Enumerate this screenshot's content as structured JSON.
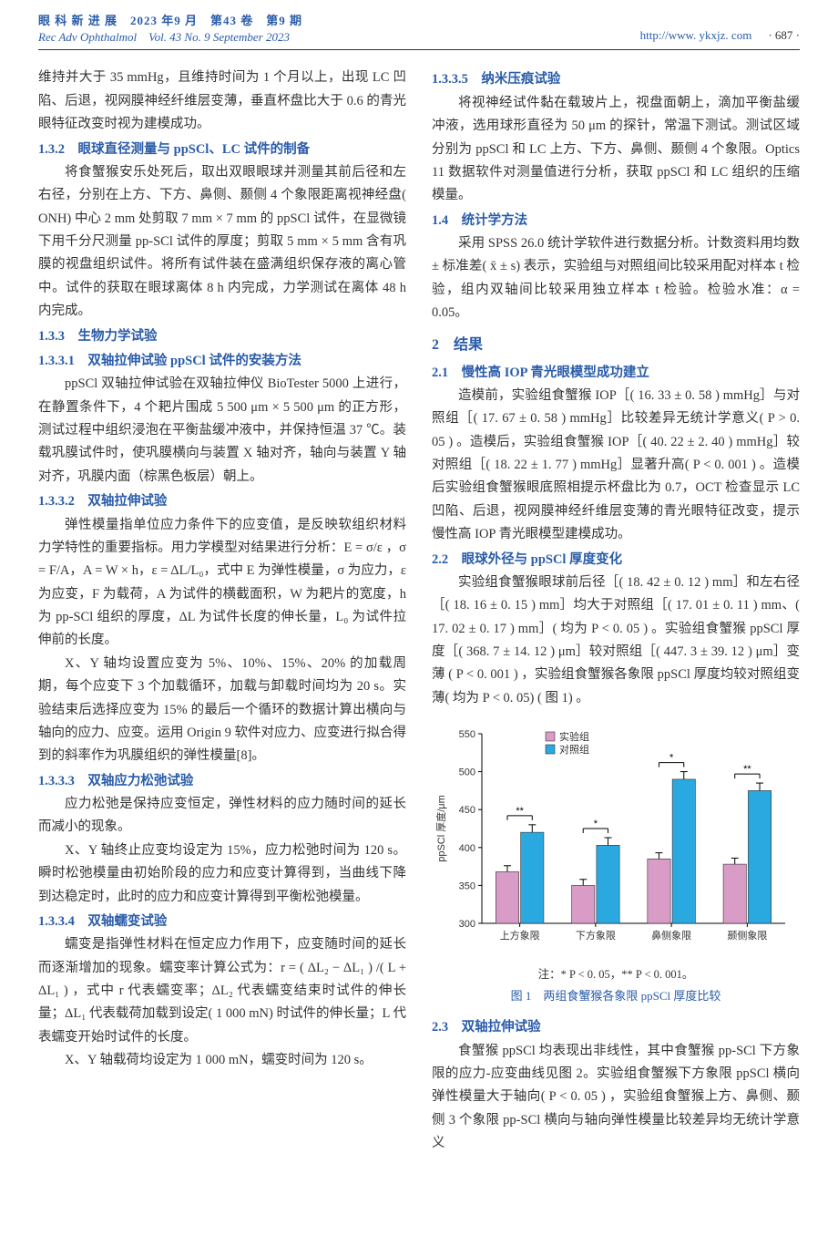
{
  "header": {
    "journal_cn": "眼 科 新 进 展　2023 年9 月　第43 卷　第9 期",
    "journal_en": "Rec Adv Ophthalmol　Vol. 43 No. 9 September 2023",
    "url": "http://www. ykxjz. com",
    "page": "· 687 ·"
  },
  "left": {
    "p1": "维持并大于 35 mmHg，且维持时间为 1 个月以上，出现 LC 凹陷、后退，视网膜神经纤维层变薄，垂直杯盘比大于 0.6 的青光眼特征改变时视为建模成功。",
    "h132": "1.3.2　眼球直径测量与 ppSCl、LC 试件的制备",
    "p132": "将食蟹猴安乐处死后，取出双眼眼球并测量其前后径和左右径，分别在上方、下方、鼻侧、颞侧 4 个象限距离视神经盘( ONH) 中心 2 mm 处剪取 7 mm × 7 mm 的 ppSCl 试件，在显微镜下用千分尺测量 pp-SCl 试件的厚度；剪取 5 mm × 5 mm 含有巩膜的视盘组织试件。将所有试件装在盛满组织保存液的离心管中。试件的获取在眼球离体 8 h 内完成，力学测试在离体 48 h 内完成。",
    "h133": "1.3.3　生物力学试验",
    "h1331": "1.3.3.1　双轴拉伸试验 ppSCl 试件的安装方法",
    "p1331": "ppSCl 双轴拉伸试验在双轴拉伸仪 BioTester 5000 上进行，在静置条件下，4 个耙片围成 5 500 μm × 5 500 μm 的正方形，测试过程中组织浸泡在平衡盐缓冲液中，并保持恒温 37 ℃。装载巩膜试件时，使巩膜横向与装置 X 轴对齐，轴向与装置 Y 轴对齐，巩膜内面（棕黑色板层）朝上。",
    "h1332": "1.3.3.2　双轴拉伸试验",
    "p1332a": "弹性模量指单位应力条件下的应变值，是反映软组织材料力学特性的重要指标。用力学模型对结果进行分析：E = σ/ε ，σ = F/A，A = W × h，ε = ΔL/L₀，式中 E 为弹性模量，σ 为应力，ε 为应变，F 为载荷，A 为试件的横截面积，W 为耙片的宽度，h 为 pp-SCl 组织的厚度，ΔL 为试件长度的伸长量，L₀ 为试件拉伸前的长度。",
    "p1332b": "X、Y 轴均设置应变为 5%、10%、15%、20% 的加载周期，每个应变下 3 个加载循环，加载与卸载时间均为 20 s。实验结束后选择应变为 15% 的最后一个循环的数据计算出横向与轴向的应力、应变。运用 Origin 9 软件对应力、应变进行拟合得到的斜率作为巩膜组织的弹性模量[8]。",
    "h1333": "1.3.3.3　双轴应力松弛试验",
    "p1333a": "应力松弛是保持应变恒定，弹性材料的应力随时间的延长而减小的现象。",
    "p1333b": "X、Y 轴终止应变均设定为 15%，应力松弛时间为 120 s。瞬时松弛模量由初始阶段的应力和应变计算得到，当曲线下降到达稳定时，此时的应力和应变计算得到平衡松弛模量。",
    "h1334": "1.3.3.4　双轴蠕变试验",
    "p1334a": "蠕变是指弹性材料在恒定应力作用下，应变随时间的延长而逐渐增加的现象。蠕变率计算公式为：r = ( ΔL₂ − ΔL₁ ) /( L + ΔL₁ ) ，式中 r 代表蠕变率；ΔL₂ 代表蠕变结束时试件的伸长量；ΔL₁ 代表载荷加载到设定( 1 000 mN) 时试件的伸长量；L 代表蠕变开始时试件的长度。",
    "p1334b": "X、Y 轴载荷均设定为 1 000 mN，蠕变时间为 120 s。"
  },
  "right": {
    "h1335": "1.3.3.5　纳米压痕试验",
    "p1335": "将视神经试件黏在载玻片上，视盘面朝上，滴加平衡盐缓冲液，选用球形直径为 50 μm 的探针，常温下测试。测试区域分别为 ppSCl 和 LC 上方、下方、鼻侧、颞侧 4 个象限。Optics 11 数据软件对测量值进行分析，获取 ppSCl 和 LC 组织的压缩模量。",
    "h14": "1.4　统计学方法",
    "p14": "采用 SPSS 26.0 统计学软件进行数据分析。计数资料用均数 ± 标准差( x̄ ± s) 表示，实验组与对照组间比较采用配对样本 t 检验，组内双轴间比较采用独立样本 t 检验。检验水准：α = 0.05。",
    "h2": "2　结果",
    "h21": "2.1　慢性高 IOP 青光眼模型成功建立",
    "p21": "造模前，实验组食蟹猴 IOP［( 16. 33 ± 0. 58 ) mmHg］与对照组［( 17. 67 ± 0. 58 ) mmHg］比较差异无统计学意义( P > 0. 05 ) 。造模后，实验组食蟹猴 IOP［( 40. 22 ± 2. 40 ) mmHg］较对照组［( 18. 22 ± 1. 77 ) mmHg］显著升高( P < 0. 001 ) 。造模后实验组食蟹猴眼底照相提示杯盘比为 0.7，OCT 检查显示 LC 凹陷、后退，视网膜神经纤维层变薄的青光眼特征改变，提示慢性高 IOP 青光眼模型建模成功。",
    "h22": "2.2　眼球外径与 ppSCl 厚度变化",
    "p22": "实验组食蟹猴眼球前后径［( 18. 42 ± 0. 12 ) mm］和左右径［( 18. 16 ± 0. 15 ) mm］均大于对照组［( 17. 01 ± 0. 11 ) mm、( 17. 02 ± 0. 17 ) mm］( 均为 P < 0. 05 ) 。实验组食蟹猴 ppSCl 厚度［( 368. 7 ± 14. 12 ) μm］较对照组［( 447. 3 ± 39. 12 ) μm］变薄 ( P < 0. 001 ) ，实验组食蟹猴各象限 ppSCl 厚度均较对照组变薄( 均为 P < 0. 05) ( 图 1) 。",
    "h23": "2.3　双轴拉伸试验",
    "p23": "食蟹猴 ppSCl 均表现出非线性，其中食蟹猴 pp-SCl 下方象限的应力-应变曲线见图 2。实验组食蟹猴下方象限 ppSCl 横向弹性模量大于轴向( P < 0. 05 ) ，实验组食蟹猴上方、鼻侧、颞侧 3 个象限 pp-SCl 横向与轴向弹性模量比较差异均无统计学意义"
  },
  "chart": {
    "type": "bar",
    "ylabel": "ppSCl 厚度/μm",
    "ylim": [
      300,
      550
    ],
    "ytick_step": 50,
    "yticks": [
      300,
      350,
      400,
      450,
      500,
      550
    ],
    "categories": [
      "上方象限",
      "下方象限",
      "鼻侧象限",
      "颞侧象限"
    ],
    "series": [
      {
        "name": "实验组",
        "color": "#d89cc7",
        "values": [
          368,
          350,
          385,
          378
        ],
        "err": [
          8,
          8,
          8,
          8
        ]
      },
      {
        "name": "对照组",
        "color": "#2aa9e0",
        "values": [
          420,
          403,
          490,
          475
        ],
        "err": [
          10,
          10,
          10,
          10
        ]
      }
    ],
    "sig": [
      "**",
      "*",
      "*",
      "**"
    ],
    "bar_width": 0.38,
    "background_color": "#ffffff",
    "grid_color": "#888",
    "note": "注：* P < 0. 05，** P < 0. 001。",
    "title": "图 1　两组食蟹猴各象限 ppSCl 厚度比较",
    "label_fontsize": 11,
    "legend_box_size": 10
  }
}
